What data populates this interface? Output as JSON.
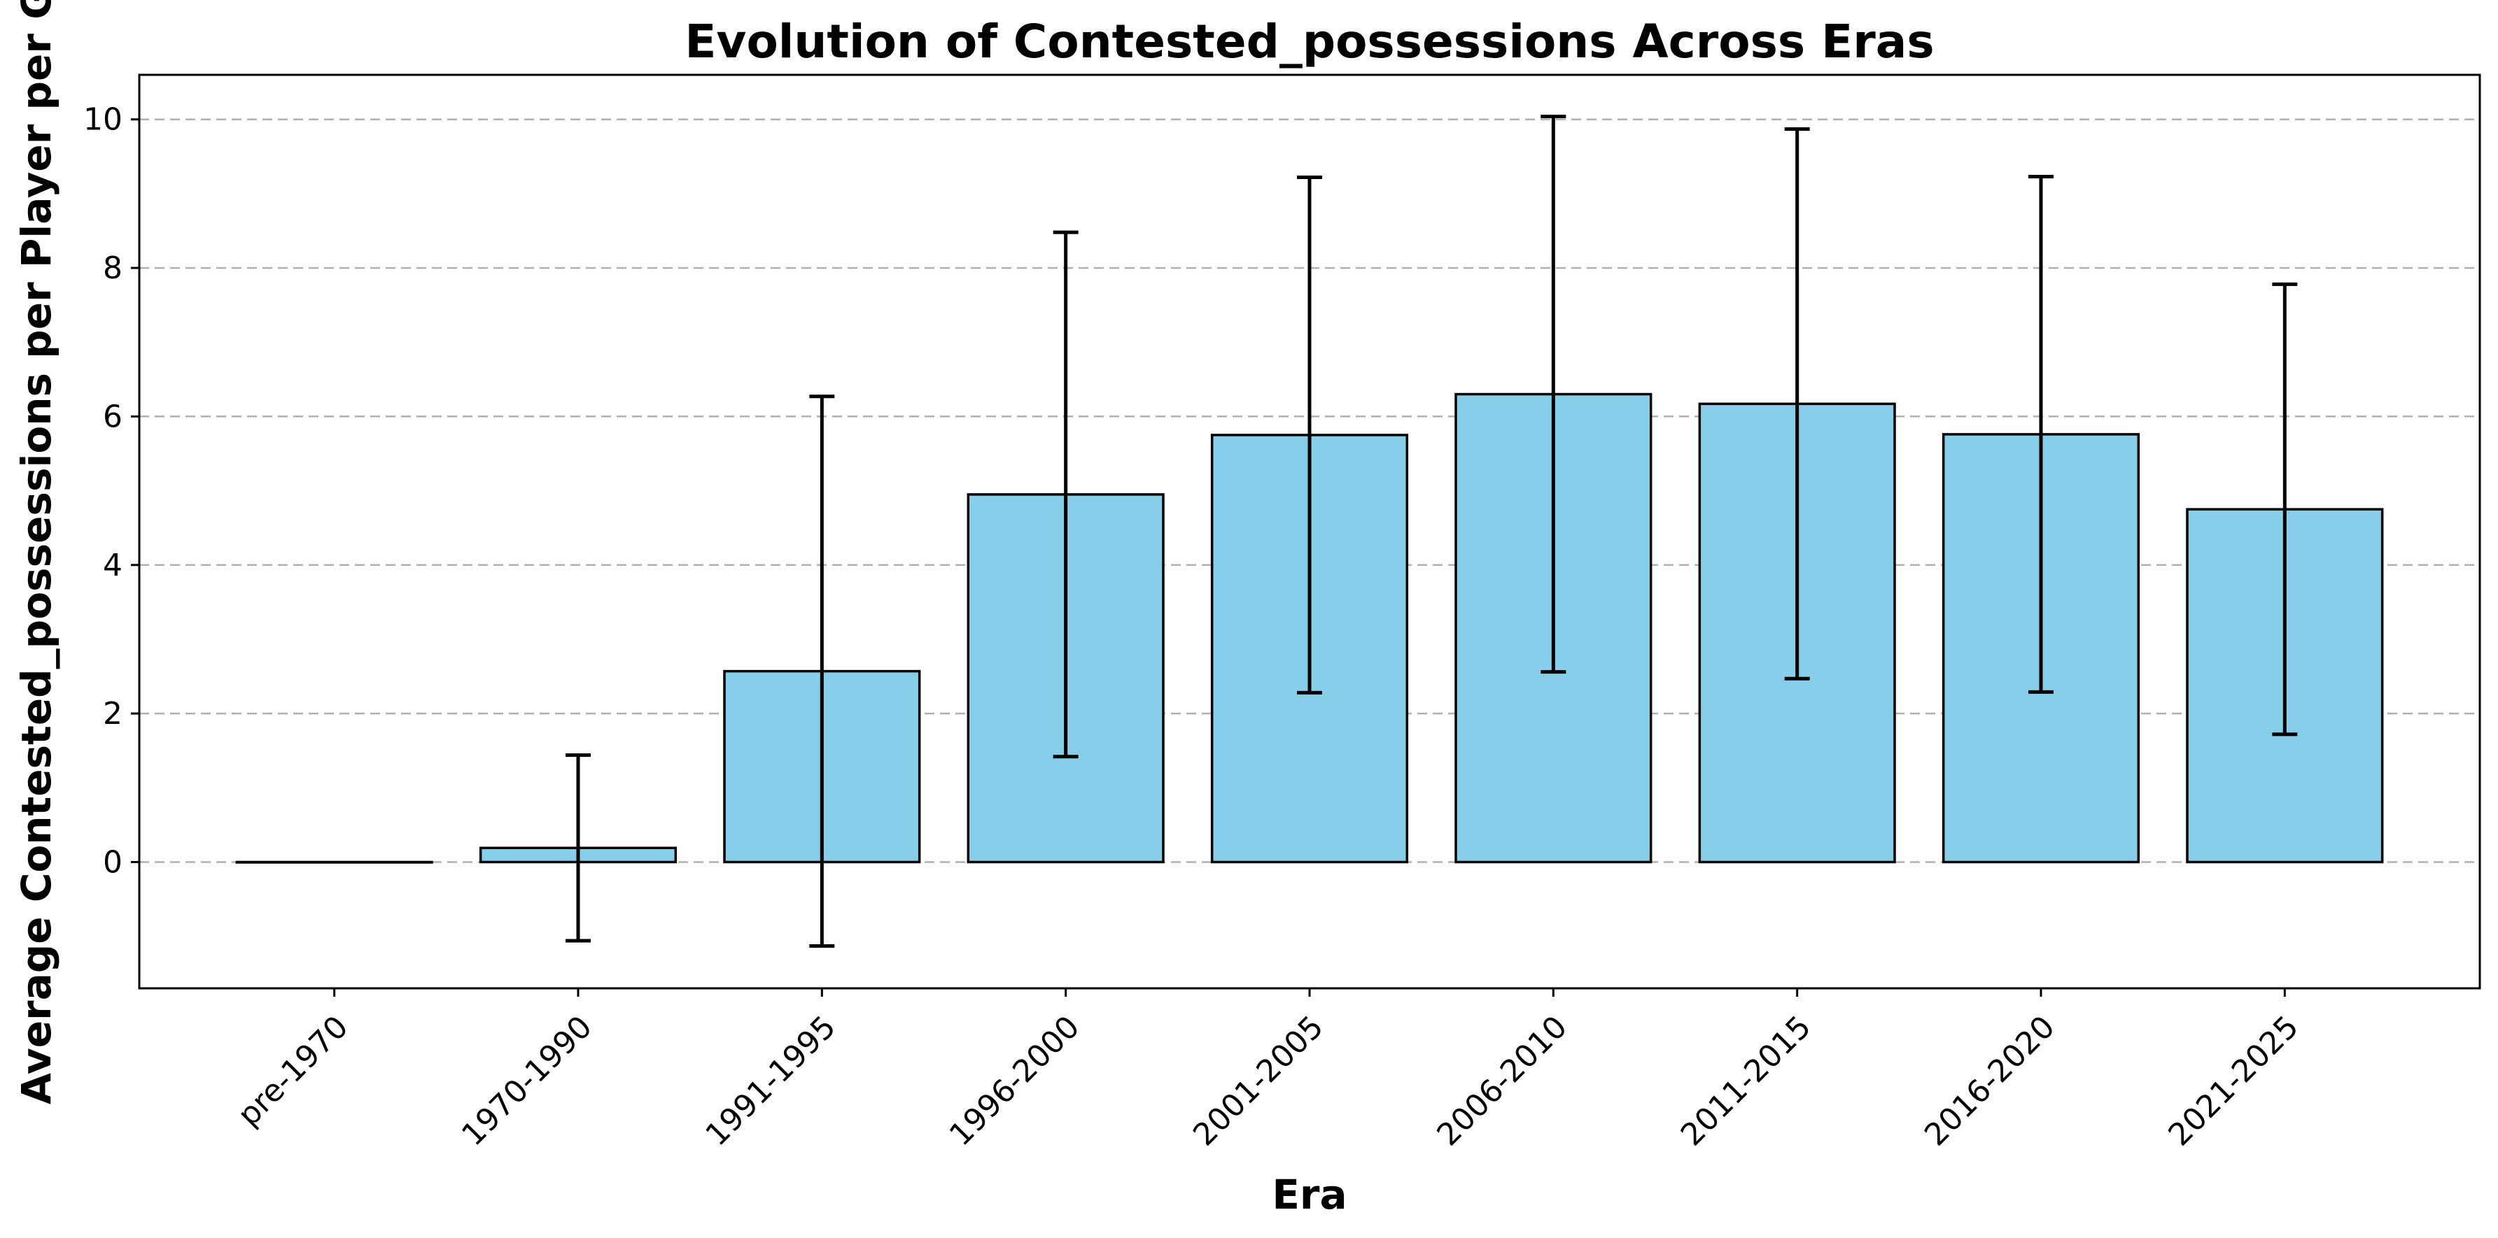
{
  "chart_data": {
    "type": "bar",
    "title": "Evolution of Contested_possessions Across Eras",
    "xlabel": "Era",
    "ylabel": "Average Contested_possessions per Player per Ga",
    "categories": [
      "pre-1970",
      "1970-1990",
      "1991-1995",
      "1996-2000",
      "2001-2005",
      "2006-2010",
      "2011-2015",
      "2016-2020",
      "2021-2025"
    ],
    "values": [
      0.0,
      0.19,
      2.57,
      4.95,
      5.75,
      6.3,
      6.17,
      5.76,
      4.75
    ],
    "errors": [
      0.0,
      1.25,
      3.7,
      3.53,
      3.47,
      3.74,
      3.7,
      3.47,
      3.03
    ],
    "yticks": [
      0,
      2,
      4,
      6,
      8,
      10
    ],
    "ylim": [
      -1.7,
      10.6
    ],
    "grid": "y",
    "bar_color": "#87ceeb",
    "edge_color": "#000000"
  }
}
